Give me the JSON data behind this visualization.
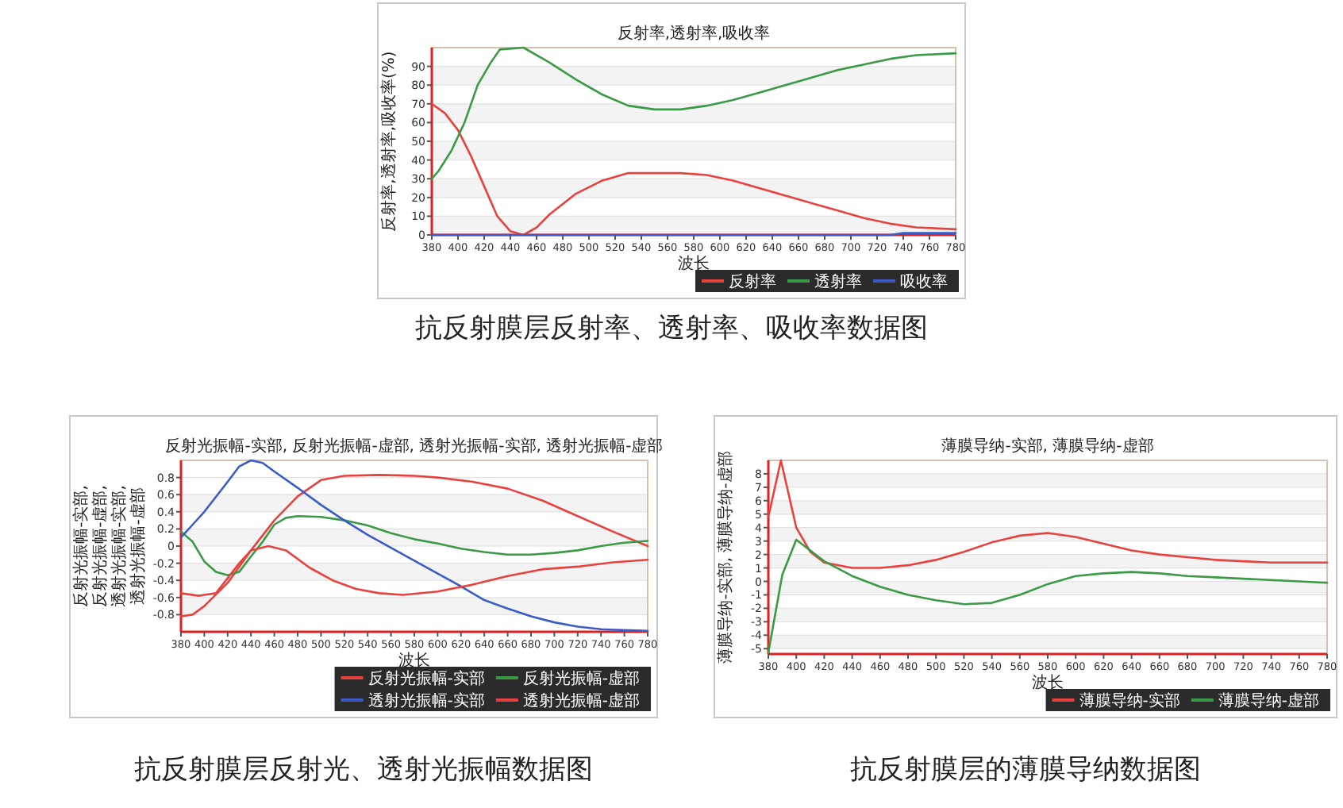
{
  "chart_data": [
    {
      "type": "line",
      "title": "反射率,透射率,吸收率",
      "xlabel": "波长",
      "ylabel": "反射率,透射率,吸收率(%)",
      "xlim": [
        380,
        780
      ],
      "xticks": [
        380,
        400,
        420,
        440,
        460,
        480,
        500,
        520,
        540,
        560,
        580,
        600,
        620,
        640,
        660,
        680,
        700,
        720,
        740,
        760,
        780
      ],
      "ylim": [
        0,
        100
      ],
      "yticks": [
        0,
        10,
        20,
        30,
        40,
        50,
        60,
        70,
        80,
        90
      ],
      "grid": "y",
      "legend": "bottom right",
      "marker": "none",
      "line_style": "solid",
      "annotations": [
        "抗反射膜层反射率、透射率、吸收率数据图"
      ],
      "series": [
        {
          "name": "反射率",
          "color": "#e8423f",
          "x": [
            380,
            390,
            400,
            410,
            420,
            430,
            440,
            450,
            460,
            470,
            490,
            510,
            530,
            550,
            570,
            590,
            610,
            630,
            650,
            670,
            690,
            710,
            730,
            750,
            780
          ],
          "values": [
            70,
            65,
            56,
            42,
            26,
            10,
            2,
            0,
            4,
            11,
            22,
            29,
            33,
            33,
            33,
            32,
            29,
            25,
            21,
            17,
            13,
            9,
            6,
            4,
            3
          ]
        },
        {
          "name": "透射率",
          "color": "#3a9a46",
          "x": [
            380,
            385,
            395,
            405,
            415,
            425,
            432,
            450,
            470,
            490,
            510,
            530,
            550,
            570,
            590,
            610,
            630,
            650,
            670,
            690,
            710,
            730,
            750,
            780
          ],
          "values": [
            30,
            34,
            45,
            60,
            80,
            92,
            99,
            100,
            92,
            83,
            75,
            69,
            67,
            67,
            69,
            72,
            76,
            80,
            84,
            88,
            91,
            94,
            96,
            97
          ]
        },
        {
          "name": "吸收率",
          "color": "#3a5cc8",
          "x": [
            380,
            730,
            740,
            780
          ],
          "values": [
            0,
            0,
            1,
            1
          ]
        }
      ]
    },
    {
      "type": "line",
      "title": "反射光振幅-实部, 反射光振幅-虚部, 透射光振幅-实部, 透射光振幅-虚部",
      "xlabel": "波长",
      "ylabel": "反射光振幅-实部, 反射光振幅-虚部, 透射光振幅-实部, 透射光振幅-虚部",
      "xlim": [
        380,
        780
      ],
      "xticks": [
        380,
        400,
        420,
        440,
        460,
        480,
        500,
        520,
        540,
        560,
        580,
        600,
        620,
        640,
        660,
        680,
        700,
        720,
        740,
        760,
        780
      ],
      "ylim": [
        -1,
        1
      ],
      "yticks": [
        -0.8,
        -0.6,
        -0.4,
        -0.2,
        0,
        0.2,
        0.4,
        0.6,
        0.8
      ],
      "grid": "y",
      "legend": "bottom right",
      "marker": "none",
      "line_style": "solid",
      "annotations": [
        "抗反射膜层反射光、透射光振幅数据图"
      ],
      "series": [
        {
          "name": "反射光振幅-实部",
          "color": "#e8423f",
          "x": [
            380,
            390,
            400,
            420,
            440,
            460,
            480,
            500,
            520,
            550,
            580,
            600,
            630,
            660,
            690,
            720,
            750,
            780
          ],
          "values": [
            -0.82,
            -0.8,
            -0.7,
            -0.43,
            -0.05,
            0.3,
            0.58,
            0.77,
            0.82,
            0.83,
            0.82,
            0.8,
            0.75,
            0.67,
            0.53,
            0.35,
            0.17,
            0.0
          ]
        },
        {
          "name": "反射光振幅-虚部",
          "color": "#3a9a46",
          "x": [
            380,
            390,
            400,
            410,
            420,
            430,
            440,
            450,
            460,
            470,
            480,
            500,
            520,
            540,
            560,
            580,
            600,
            620,
            640,
            660,
            680,
            700,
            720,
            740,
            760,
            780
          ],
          "values": [
            0.17,
            0.05,
            -0.18,
            -0.3,
            -0.34,
            -0.3,
            -0.12,
            0.05,
            0.25,
            0.33,
            0.35,
            0.34,
            0.3,
            0.24,
            0.15,
            0.08,
            0.03,
            -0.03,
            -0.07,
            -0.1,
            -0.1,
            -0.08,
            -0.05,
            0.0,
            0.04,
            0.06
          ]
        },
        {
          "name": "透射光振幅-实部",
          "color": "#3a5cc8",
          "x": [
            380,
            390,
            400,
            420,
            430,
            440,
            450,
            460,
            480,
            500,
            520,
            540,
            560,
            580,
            600,
            620,
            640,
            660,
            680,
            700,
            720,
            740,
            780
          ],
          "values": [
            0.1,
            0.25,
            0.4,
            0.75,
            0.93,
            1.0,
            0.97,
            0.87,
            0.68,
            0.48,
            0.3,
            0.13,
            -0.02,
            -0.17,
            -0.32,
            -0.47,
            -0.63,
            -0.73,
            -0.82,
            -0.89,
            -0.94,
            -0.97,
            -0.99
          ]
        },
        {
          "name": "透射光振幅-虚部",
          "color": "#e8423f",
          "x": [
            380,
            395,
            410,
            430,
            440,
            455,
            470,
            490,
            510,
            530,
            550,
            570,
            600,
            630,
            660,
            690,
            720,
            750,
            780
          ],
          "values": [
            -0.55,
            -0.58,
            -0.55,
            -0.2,
            -0.05,
            0.0,
            -0.05,
            -0.25,
            -0.4,
            -0.5,
            -0.55,
            -0.57,
            -0.53,
            -0.45,
            -0.35,
            -0.27,
            -0.24,
            -0.19,
            -0.16
          ]
        }
      ]
    },
    {
      "type": "line",
      "title": "薄膜导纳-实部, 薄膜导纳-虚部",
      "xlabel": "波长",
      "ylabel": "薄膜导纳-实部, 薄膜导纳-虚部",
      "xlim": [
        380,
        780
      ],
      "xticks": [
        380,
        400,
        420,
        440,
        460,
        480,
        500,
        520,
        540,
        560,
        580,
        600,
        620,
        640,
        660,
        680,
        700,
        720,
        740,
        760,
        780
      ],
      "ylim": [
        -5.4,
        9
      ],
      "yticks": [
        -5,
        -4,
        -3,
        -2,
        -1,
        0,
        1,
        2,
        3,
        4,
        5,
        6,
        7,
        8
      ],
      "grid": "y",
      "legend": "bottom right",
      "marker": "none",
      "line_style": "solid",
      "annotations": [
        "抗反射膜层的薄膜导纳数据图"
      ],
      "series": [
        {
          "name": "薄膜导纳-实部",
          "color": "#e8423f",
          "x": [
            380,
            389,
            400,
            410,
            420,
            440,
            460,
            480,
            500,
            520,
            540,
            560,
            580,
            600,
            620,
            640,
            660,
            680,
            700,
            720,
            740,
            760,
            780
          ],
          "values": [
            4.8,
            9.0,
            4.0,
            2.2,
            1.4,
            1.0,
            1.0,
            1.2,
            1.6,
            2.2,
            2.9,
            3.4,
            3.6,
            3.3,
            2.8,
            2.3,
            2.0,
            1.8,
            1.6,
            1.5,
            1.4,
            1.4,
            1.4
          ]
        },
        {
          "name": "薄膜导纳-虚部",
          "color": "#3a9a46",
          "x": [
            380,
            390,
            400,
            420,
            440,
            460,
            480,
            500,
            520,
            540,
            560,
            580,
            600,
            620,
            640,
            660,
            680,
            700,
            720,
            740,
            760,
            780
          ],
          "values": [
            -5.3,
            0.5,
            3.1,
            1.5,
            0.4,
            -0.4,
            -1.0,
            -1.4,
            -1.7,
            -1.6,
            -1.0,
            -0.2,
            0.4,
            0.6,
            0.7,
            0.6,
            0.4,
            0.3,
            0.2,
            0.1,
            0.0,
            -0.1
          ]
        }
      ]
    }
  ]
}
